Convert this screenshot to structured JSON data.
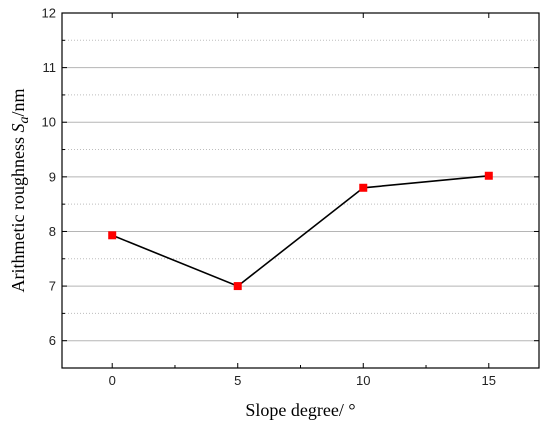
{
  "chart_data": {
    "type": "line",
    "x": [
      0,
      5,
      10,
      15
    ],
    "values": [
      7.93,
      7.0,
      8.8,
      9.02
    ],
    "xlabel": "Slope degree/ °",
    "ylabel_prefix": "Arithmetic roughness ",
    "ylabel_symbol": "S",
    "ylabel_subscript": "a",
    "ylabel_suffix": "/nm",
    "xlim": [
      -2,
      17
    ],
    "ylim": [
      5.5,
      12
    ],
    "xticks": [
      0,
      5,
      10,
      15
    ],
    "yticks": [
      6,
      7,
      8,
      9,
      10,
      11,
      12
    ],
    "grid": "dotted-horizontal",
    "line_color": "#000000",
    "marker_color": "#ff0000",
    "marker": "square"
  }
}
